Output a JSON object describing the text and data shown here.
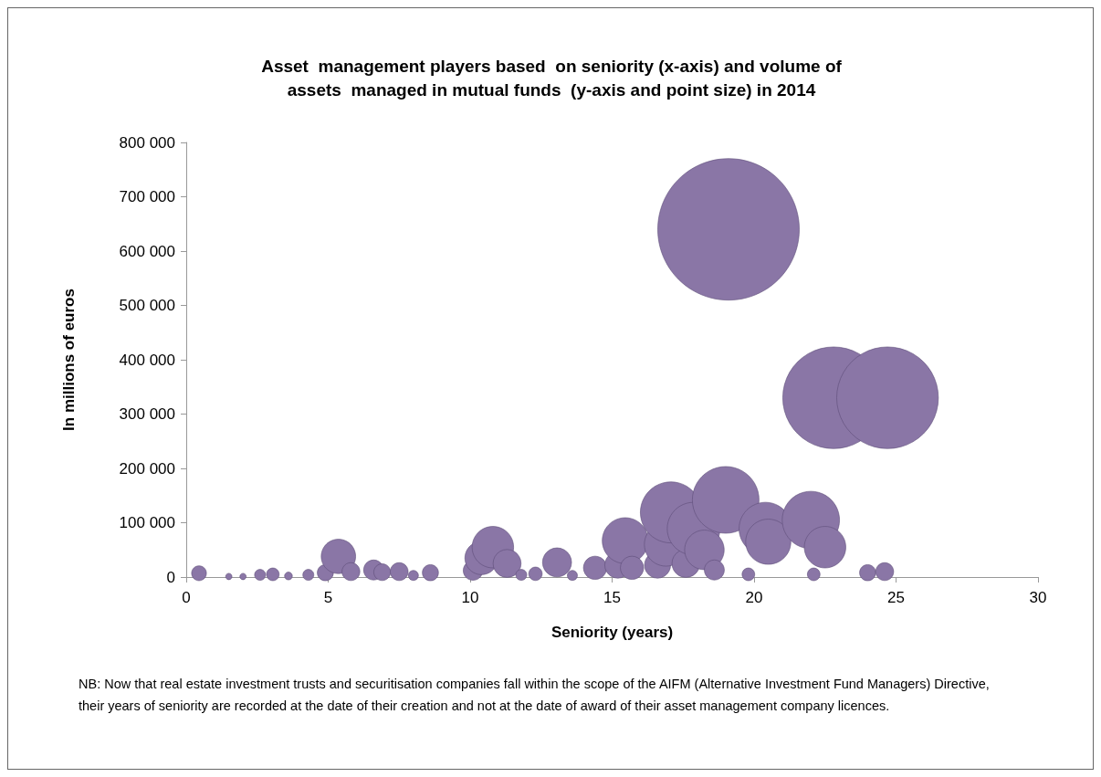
{
  "chart_data": {
    "type": "bubble",
    "title": "Asset  management players based  on seniority (x-axis) and volume of\nassets  managed in mutual funds  (y-axis and point size) in 2014",
    "xlabel": "Seniority (years)",
    "ylabel": "In millions of euros",
    "annotations": [
      "NB: Now that real estate investment trusts and securitisation companies fall within the scope of the AIFM (Alternative Investment Fund Managers) Directive, their years of seniority are recorded at the date of their creation and not at the date of award of their asset management company licences."
    ],
    "x": [
      0.45,
      1.5,
      2.0,
      2.6,
      3.05,
      3.6,
      4.3,
      4.9,
      5.36,
      5.8,
      6.6,
      6.9,
      7.5,
      8.0,
      8.6,
      10.1,
      10.4,
      10.8,
      11.3,
      11.8,
      12.3,
      13.06,
      13.6,
      14.4,
      15.2,
      15.46,
      15.7,
      16.6,
      16.9,
      17.07,
      17.6,
      17.87,
      18.25,
      18.6,
      19.0,
      19.1,
      19.8,
      20.4,
      20.5,
      22.0,
      22.1,
      22.5,
      22.8,
      24.0,
      24.6,
      24.7
    ],
    "values": [
      7000,
      1000,
      1000,
      4000,
      5000,
      2000,
      4000,
      8000,
      38000,
      10000,
      13000,
      9000,
      10000,
      3000,
      8000,
      12000,
      35000,
      55000,
      25000,
      4000,
      6000,
      27000,
      3000,
      17000,
      22000,
      67000,
      17000,
      22000,
      60000,
      119000,
      25000,
      89000,
      50000,
      13000,
      142000,
      640000,
      5000,
      89000,
      65000,
      105000,
      5000,
      55000,
      330000,
      8000,
      10000,
      330000
    ],
    "sizes": [
      0.011,
      0.002,
      0.002,
      0.006,
      0.008,
      0.003,
      0.006,
      0.013,
      0.059,
      0.016,
      0.02,
      0.014,
      0.016,
      0.005,
      0.013,
      0.019,
      0.055,
      0.086,
      0.039,
      0.006,
      0.009,
      0.042,
      0.005,
      0.027,
      0.034,
      0.105,
      0.027,
      0.034,
      0.094,
      0.186,
      0.039,
      0.139,
      0.078,
      0.02,
      0.222,
      1,
      0.008,
      0.139,
      0.102,
      0.164,
      0.008,
      0.086,
      0.516,
      0.013,
      0.016,
      0.516
    ],
    "color": "#8a76a6",
    "marker": "circle",
    "grid": false,
    "xlim": [
      0,
      30
    ],
    "xticks": [
      0,
      5,
      10,
      15,
      20,
      25,
      30
    ],
    "ylim": [
      0,
      800000
    ],
    "yticks": [
      {
        "value": 0,
        "label": "0"
      },
      {
        "value": 100000,
        "label": "100 000"
      },
      {
        "value": 200000,
        "label": "200 000"
      },
      {
        "value": 300000,
        "label": "300 000"
      },
      {
        "value": 400000,
        "label": "400 000"
      },
      {
        "value": 500000,
        "label": "500 000"
      },
      {
        "value": 600000,
        "label": "600 000"
      },
      {
        "value": 700000,
        "label": "700 000"
      },
      {
        "value": 800000,
        "label": "800 000"
      }
    ]
  }
}
